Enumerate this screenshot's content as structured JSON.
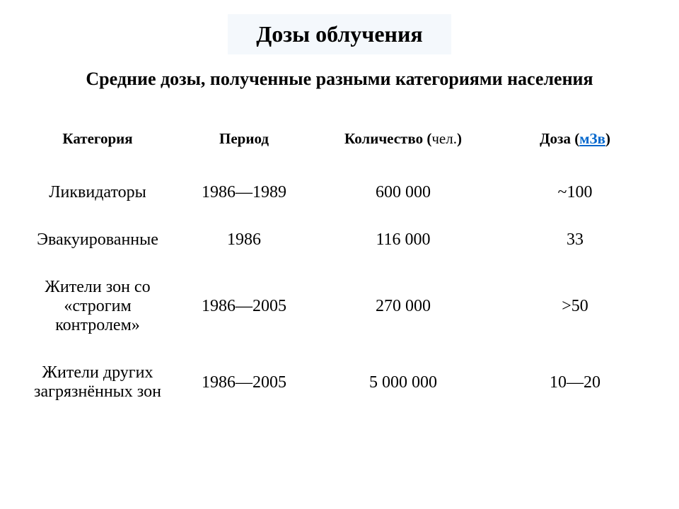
{
  "title": "Дозы облучения",
  "subtitle": "Средние дозы, полученные разными категориями населения",
  "table": {
    "headers": {
      "category": "Категория",
      "period": "Период",
      "count_prefix": "Количество (",
      "count_unit": "чел.",
      "count_suffix": ")",
      "dose_prefix": "Доза (",
      "dose_unit": "мЗв",
      "dose_suffix": ")"
    },
    "rows": [
      {
        "category": "Ликвидаторы",
        "period": "1986—1989",
        "count": "600 000",
        "dose": "~100"
      },
      {
        "category": "Эвакуированные",
        "period": "1986",
        "count": "116 000",
        "dose": "33"
      },
      {
        "category": "Жители зон со «строгим контролем»",
        "period": "1986—2005",
        "count": "270 000",
        "dose": ">50"
      },
      {
        "category": "Жители других загрязнённых зон",
        "period": "1986—2005",
        "count": "5 000 000",
        "dose": "10—20"
      }
    ]
  },
  "styling": {
    "background_color": "#ffffff",
    "title_bg_color": "#f4f8fc",
    "text_color": "#000000",
    "link_color": "#0066cc",
    "font_family": "Times New Roman",
    "title_fontsize": 32,
    "subtitle_fontsize": 26,
    "header_fontsize": 21,
    "cell_fontsize": 24,
    "column_widths_percent": [
      24,
      22,
      28,
      26
    ]
  }
}
